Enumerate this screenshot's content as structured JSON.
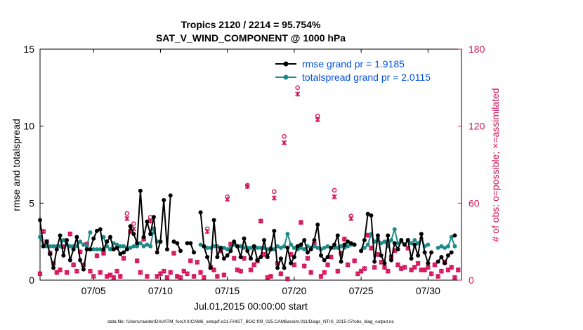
{
  "colors": {
    "rmse": "#000000",
    "spread": "#1f8a8a",
    "obs": "#d4145a",
    "legend_text": "#0050e6",
    "axis": "#000000"
  },
  "chart_data": {
    "type": "line",
    "title_line1": "Tropics 2120 / 2214 = 95.754%",
    "title_line2": "SAT_V_WIND_COMPONENT @ 1000 hPa",
    "xlabel": "Jul.01,2015 00:00:00 start",
    "ylabel_left": "rmse and totalspread",
    "ylabel_right": "# of obs: o=possible; ×=assimilated",
    "footer": "data file: /Users/raeder/DAI/ATM_forcXX/CAM6_setup/f.e21.FHIST_BGC.f09_025.CAM6assim.011/Diags_NTrS_2015-07/obs_diag_output.nc",
    "xlim": [
      1,
      32.5
    ],
    "ylim_left": [
      0,
      15
    ],
    "ylim_right": [
      0,
      180
    ],
    "x_ticks": [
      {
        "value": 5,
        "label": "07/05"
      },
      {
        "value": 10,
        "label": "07/10"
      },
      {
        "value": 15,
        "label": "07/15"
      },
      {
        "value": 20,
        "label": "07/20"
      },
      {
        "value": 25,
        "label": "07/25"
      },
      {
        "value": 30,
        "label": "07/30"
      }
    ],
    "y_ticks_left": [
      {
        "value": 0,
        "label": "0"
      },
      {
        "value": 5,
        "label": "5"
      },
      {
        "value": 10,
        "label": "10"
      },
      {
        "value": 15,
        "label": "15"
      }
    ],
    "y_ticks_right": [
      {
        "value": 0,
        "label": "0"
      },
      {
        "value": 60,
        "label": "60"
      },
      {
        "value": 120,
        "label": "120"
      },
      {
        "value": 180,
        "label": "180"
      }
    ],
    "legend": [
      {
        "name": "rmse",
        "label": "rmse grand pr = 1.9185"
      },
      {
        "name": "totalspread",
        "label": "totalspread grand pr = 2.0115"
      }
    ],
    "series": [
      {
        "name": "rmse",
        "axis": "left",
        "segments": [
          {
            "x": [
              1.0,
              1.25,
              1.5,
              1.75,
              2.0,
              2.25,
              2.5,
              2.75,
              3.0,
              3.25,
              3.5,
              3.75,
              4.0,
              4.25,
              4.5,
              4.75,
              5.0,
              5.25,
              5.5,
              5.75,
              6.0,
              6.25,
              6.5,
              6.75,
              7.0,
              7.25,
              7.5,
              7.75,
              8.0,
              8.25,
              8.5,
              8.75,
              9.0,
              9.25,
              9.5,
              9.75,
              10.0,
              10.25,
              10.5,
              10.75
            ],
            "y": [
              3.9,
              2.2,
              2.5,
              1.7,
              0.8,
              2.0,
              2.9,
              1.6,
              2.6,
              1.3,
              2.0,
              2.8,
              1.3,
              0.7,
              2.0,
              2.0,
              2.7,
              3.2,
              3.3,
              2.0,
              2.5,
              2.8,
              2.0,
              2.1,
              1.7,
              1.8,
              2.0,
              3.5,
              3.0,
              2.4,
              5.8,
              2.8,
              3.8,
              3.0,
              4.1,
              1.8,
              2.5,
              5.2,
              2.0,
              5.5
            ]
          },
          {
            "x": [
              11.0,
              11.25,
              11.5
            ],
            "y": [
              2.5,
              2.4,
              1.9
            ]
          },
          {
            "x": [
              12.0,
              12.25,
              12.5
            ],
            "y": [
              2.4,
              2.4,
              1.8
            ]
          },
          {
            "x": [
              13.0,
              13.25,
              13.5,
              13.75,
              14.0,
              14.25,
              14.5,
              14.75,
              15.0,
              15.25,
              15.5,
              15.75,
              16.0,
              16.25,
              16.5,
              16.75,
              17.0,
              17.25,
              17.5,
              17.75,
              18.0,
              18.25,
              18.5,
              18.75,
              19.0,
              19.25,
              19.5,
              19.75,
              20.0,
              20.25,
              20.5,
              20.75,
              21.0,
              21.25,
              21.5,
              21.75,
              22.0,
              22.25,
              22.5,
              22.75,
              23.0,
              23.25,
              23.5,
              23.75,
              24.0,
              24.25,
              24.5
            ],
            "y": [
              4.4,
              2.2,
              1.5,
              0.8,
              3.9,
              1.5,
              2.1,
              1.4,
              1.6,
              1.9,
              2.5,
              2.2,
              1.5,
              2.7,
              1.9,
              1.4,
              2.2,
              1.3,
              1.5,
              2.6,
              1.5,
              2.0,
              3.2,
              0.8,
              1.4,
              0.8,
              2.1,
              1.1,
              1.5,
              2.2,
              2.3,
              2.6,
              1.8,
              2.0,
              2.6,
              3.6,
              1.6,
              1.3,
              1.5,
              2.1,
              2.3,
              2.9,
              1.2,
              2.3,
              2.5,
              2.4,
              2.3
            ]
          },
          {
            "x": [
              25.0,
              25.25,
              25.5,
              25.75,
              26.0,
              26.25,
              26.5,
              26.75,
              27.0,
              27.25,
              27.5,
              27.75,
              28.0,
              28.25,
              28.5,
              28.75,
              29.0,
              29.25,
              29.5,
              29.75,
              30.0,
              30.25
            ],
            "y": [
              1.9,
              2.6,
              4.3,
              4.2,
              1.2,
              2.9,
              1.6,
              1.1,
              2.9,
              1.3,
              2.4,
              2.0,
              2.6,
              2.3,
              2.6,
              1.4,
              2.3,
              1.6,
              3.0,
              1.8,
              1.1,
              1.8
            ]
          },
          {
            "x": [
              30.75,
              31.0,
              31.25,
              31.5,
              31.75
            ],
            "y": [
              1.2,
              1.5,
              1.1,
              1.6,
              1.8
            ]
          },
          {
            "x": [
              32.0
            ],
            "y": [
              2.9
            ]
          }
        ]
      },
      {
        "name": "totalspread",
        "axis": "left",
        "segments": [
          {
            "x": [
              1.0,
              1.25,
              1.5,
              1.75,
              2.0,
              2.25,
              2.5,
              2.75,
              3.0,
              3.25,
              3.5,
              3.75,
              4.0,
              4.25,
              4.5,
              4.75
            ],
            "y": [
              2.8,
              2.2,
              2.2,
              2.2,
              2.2,
              2.2,
              2.2,
              2.6,
              2.3,
              2.2,
              2.2,
              2.2,
              2.5,
              2.3,
              2.2,
              3.1
            ]
          },
          {
            "x": [
              5.0,
              5.25,
              5.5
            ],
            "y": [
              2.0,
              2.0,
              2.0
            ]
          },
          {
            "x": [
              5.75,
              6.0,
              6.25,
              6.5,
              6.75,
              7.0,
              7.25,
              7.5,
              7.75,
              8.0,
              8.25,
              8.5,
              8.75,
              9.0,
              9.25,
              9.5,
              9.75,
              10.0
            ],
            "y": [
              2.8,
              2.2,
              2.0,
              2.4,
              2.3,
              2.2,
              2.2,
              2.1,
              2.1,
              2.2,
              2.2,
              2.4,
              2.2,
              2.3,
              2.2,
              3.3,
              2.5,
              2.5
            ]
          },
          {
            "x": [
              13.0,
              13.25,
              13.5,
              13.75,
              14.0,
              14.25,
              14.5,
              14.75,
              15.0,
              15.25,
              15.5,
              15.75,
              16.0,
              16.25,
              16.5,
              16.75,
              17.0,
              17.25,
              17.5,
              17.75,
              18.0,
              18.25,
              18.5,
              18.75,
              19.0,
              19.25,
              19.5,
              19.75,
              20.0,
              20.25,
              20.5,
              20.75,
              21.0,
              21.25,
              21.5,
              21.75,
              22.0,
              22.25,
              22.5,
              22.75,
              23.0,
              23.25,
              23.5,
              23.75,
              24.0,
              24.25,
              24.5
            ],
            "y": [
              2.3,
              2.2,
              2.1,
              2.1,
              2.2,
              2.2,
              2.1,
              2.1,
              2.0,
              2.1,
              2.3,
              2.2,
              2.2,
              2.1,
              2.1,
              2.1,
              2.2,
              2.1,
              2.1,
              2.1,
              2.0,
              2.1,
              2.0,
              2.2,
              2.1,
              2.2,
              3.0,
              2.3,
              2.1,
              2.0,
              2.1,
              2.0,
              2.2,
              2.1,
              2.2,
              2.1,
              2.0,
              2.1,
              2.2,
              2.1,
              2.1,
              2.1,
              2.2,
              2.1,
              2.2,
              2.3,
              2.3
            ]
          },
          {
            "x": [
              25.0,
              25.25,
              25.5,
              25.75,
              26.0,
              26.25,
              26.5,
              26.75,
              27.0,
              27.25,
              27.5,
              27.75,
              28.0,
              28.25,
              28.5,
              28.75,
              29.0,
              29.25,
              29.5,
              29.75,
              30.0
            ],
            "y": [
              1.9,
              2.1,
              2.3,
              3.0,
              2.5,
              2.7,
              2.4,
              2.5,
              2.2,
              2.6,
              3.3,
              2.4,
              2.5,
              2.3,
              2.6,
              2.4,
              2.6,
              2.4,
              2.7,
              2.2,
              2.3
            ]
          },
          {
            "x": [
              30.75,
              31.0,
              31.25,
              31.5,
              31.75,
              32.0
            ],
            "y": [
              2.1,
              2.2,
              2.1,
              2.2,
              2.8,
              2.2
            ]
          }
        ]
      }
    ],
    "obs": {
      "x": [
        1.0,
        1.25,
        1.5,
        1.75,
        2.0,
        2.25,
        2.5,
        2.75,
        3.0,
        3.25,
        3.5,
        3.75,
        4.0,
        4.25,
        4.5,
        4.75,
        5.0,
        5.25,
        5.5,
        5.75,
        6.0,
        6.25,
        6.5,
        6.75,
        7.0,
        7.25,
        7.5,
        7.75,
        8.0,
        8.25,
        8.5,
        8.75,
        9.0,
        9.25,
        9.5,
        9.75,
        10.0,
        10.25,
        10.5,
        10.75,
        11.0,
        11.25,
        11.5,
        11.75,
        12.0,
        12.25,
        12.5,
        12.75,
        13.0,
        13.25,
        13.5,
        13.75,
        14.0,
        14.25,
        14.5,
        14.75,
        15.0,
        15.25,
        15.5,
        15.75,
        16.0,
        16.25,
        16.5,
        16.75,
        17.0,
        17.25,
        17.5,
        17.75,
        18.0,
        18.25,
        18.5,
        18.75,
        19.0,
        19.25,
        19.5,
        19.75,
        20.0,
        20.25,
        20.5,
        20.75,
        21.0,
        21.25,
        21.5,
        21.75,
        22.0,
        22.25,
        22.5,
        22.75,
        23.0,
        23.25,
        23.5,
        23.75,
        24.0,
        24.25,
        24.5,
        24.75,
        25.0,
        25.25,
        25.5,
        25.75,
        26.0,
        26.25,
        26.5,
        26.75,
        27.0,
        27.25,
        27.5,
        27.75,
        28.0,
        28.25,
        28.5,
        28.75,
        29.0,
        29.25,
        29.5,
        29.75,
        30.0,
        30.25,
        30.5,
        30.75,
        31.0,
        31.25,
        31.5,
        31.75,
        32.0,
        32.25
      ],
      "possible": [
        5,
        38,
        30,
        21,
        13,
        6,
        8,
        26,
        6,
        36,
        12,
        7,
        22,
        12,
        28,
        7,
        3,
        19,
        6,
        21,
        3,
        4,
        2,
        7,
        3,
        17,
        52,
        38,
        44,
        15,
        6,
        32,
        3,
        49,
        40,
        3,
        5,
        7,
        2,
        6,
        21,
        3,
        2,
        7,
        5,
        15,
        3,
        14,
        6,
        2,
        40,
        10,
        8,
        3,
        23,
        4,
        65,
        28,
        17,
        8,
        7,
        17,
        74,
        8,
        12,
        15,
        46,
        20,
        2,
        3,
        69,
        13,
        5,
        112,
        1,
        20,
        12,
        150,
        45,
        11,
        17,
        6,
        28,
        128,
        3,
        6,
        12,
        18,
        70,
        7,
        21,
        32,
        12,
        50,
        15,
        5,
        7,
        9,
        35,
        25,
        10,
        20,
        14,
        10,
        7,
        18,
        23,
        12,
        9,
        10,
        25,
        8,
        10,
        13,
        8,
        8,
        10,
        5,
        12,
        3,
        7,
        14,
        8,
        10,
        2,
        8
      ],
      "assimilated": [
        5,
        38,
        30,
        21,
        13,
        6,
        8,
        26,
        6,
        36,
        12,
        7,
        22,
        12,
        28,
        7,
        3,
        19,
        6,
        21,
        3,
        4,
        2,
        7,
        3,
        17,
        48,
        38,
        40,
        15,
        6,
        32,
        3,
        46,
        38,
        3,
        5,
        7,
        2,
        6,
        21,
        3,
        2,
        7,
        5,
        15,
        3,
        14,
        6,
        2,
        38,
        10,
        8,
        3,
        23,
        4,
        63,
        28,
        17,
        8,
        7,
        17,
        73,
        8,
        12,
        15,
        46,
        20,
        2,
        3,
        64,
        13,
        5,
        107,
        1,
        20,
        12,
        145,
        45,
        11,
        17,
        6,
        28,
        125,
        3,
        6,
        12,
        18,
        65,
        7,
        21,
        32,
        12,
        48,
        15,
        5,
        7,
        9,
        35,
        25,
        10,
        20,
        14,
        10,
        7,
        18,
        23,
        12,
        9,
        10,
        25,
        8,
        10,
        13,
        8,
        8,
        10,
        5,
        12,
        3,
        7,
        14,
        8,
        10,
        2,
        8
      ]
    }
  }
}
